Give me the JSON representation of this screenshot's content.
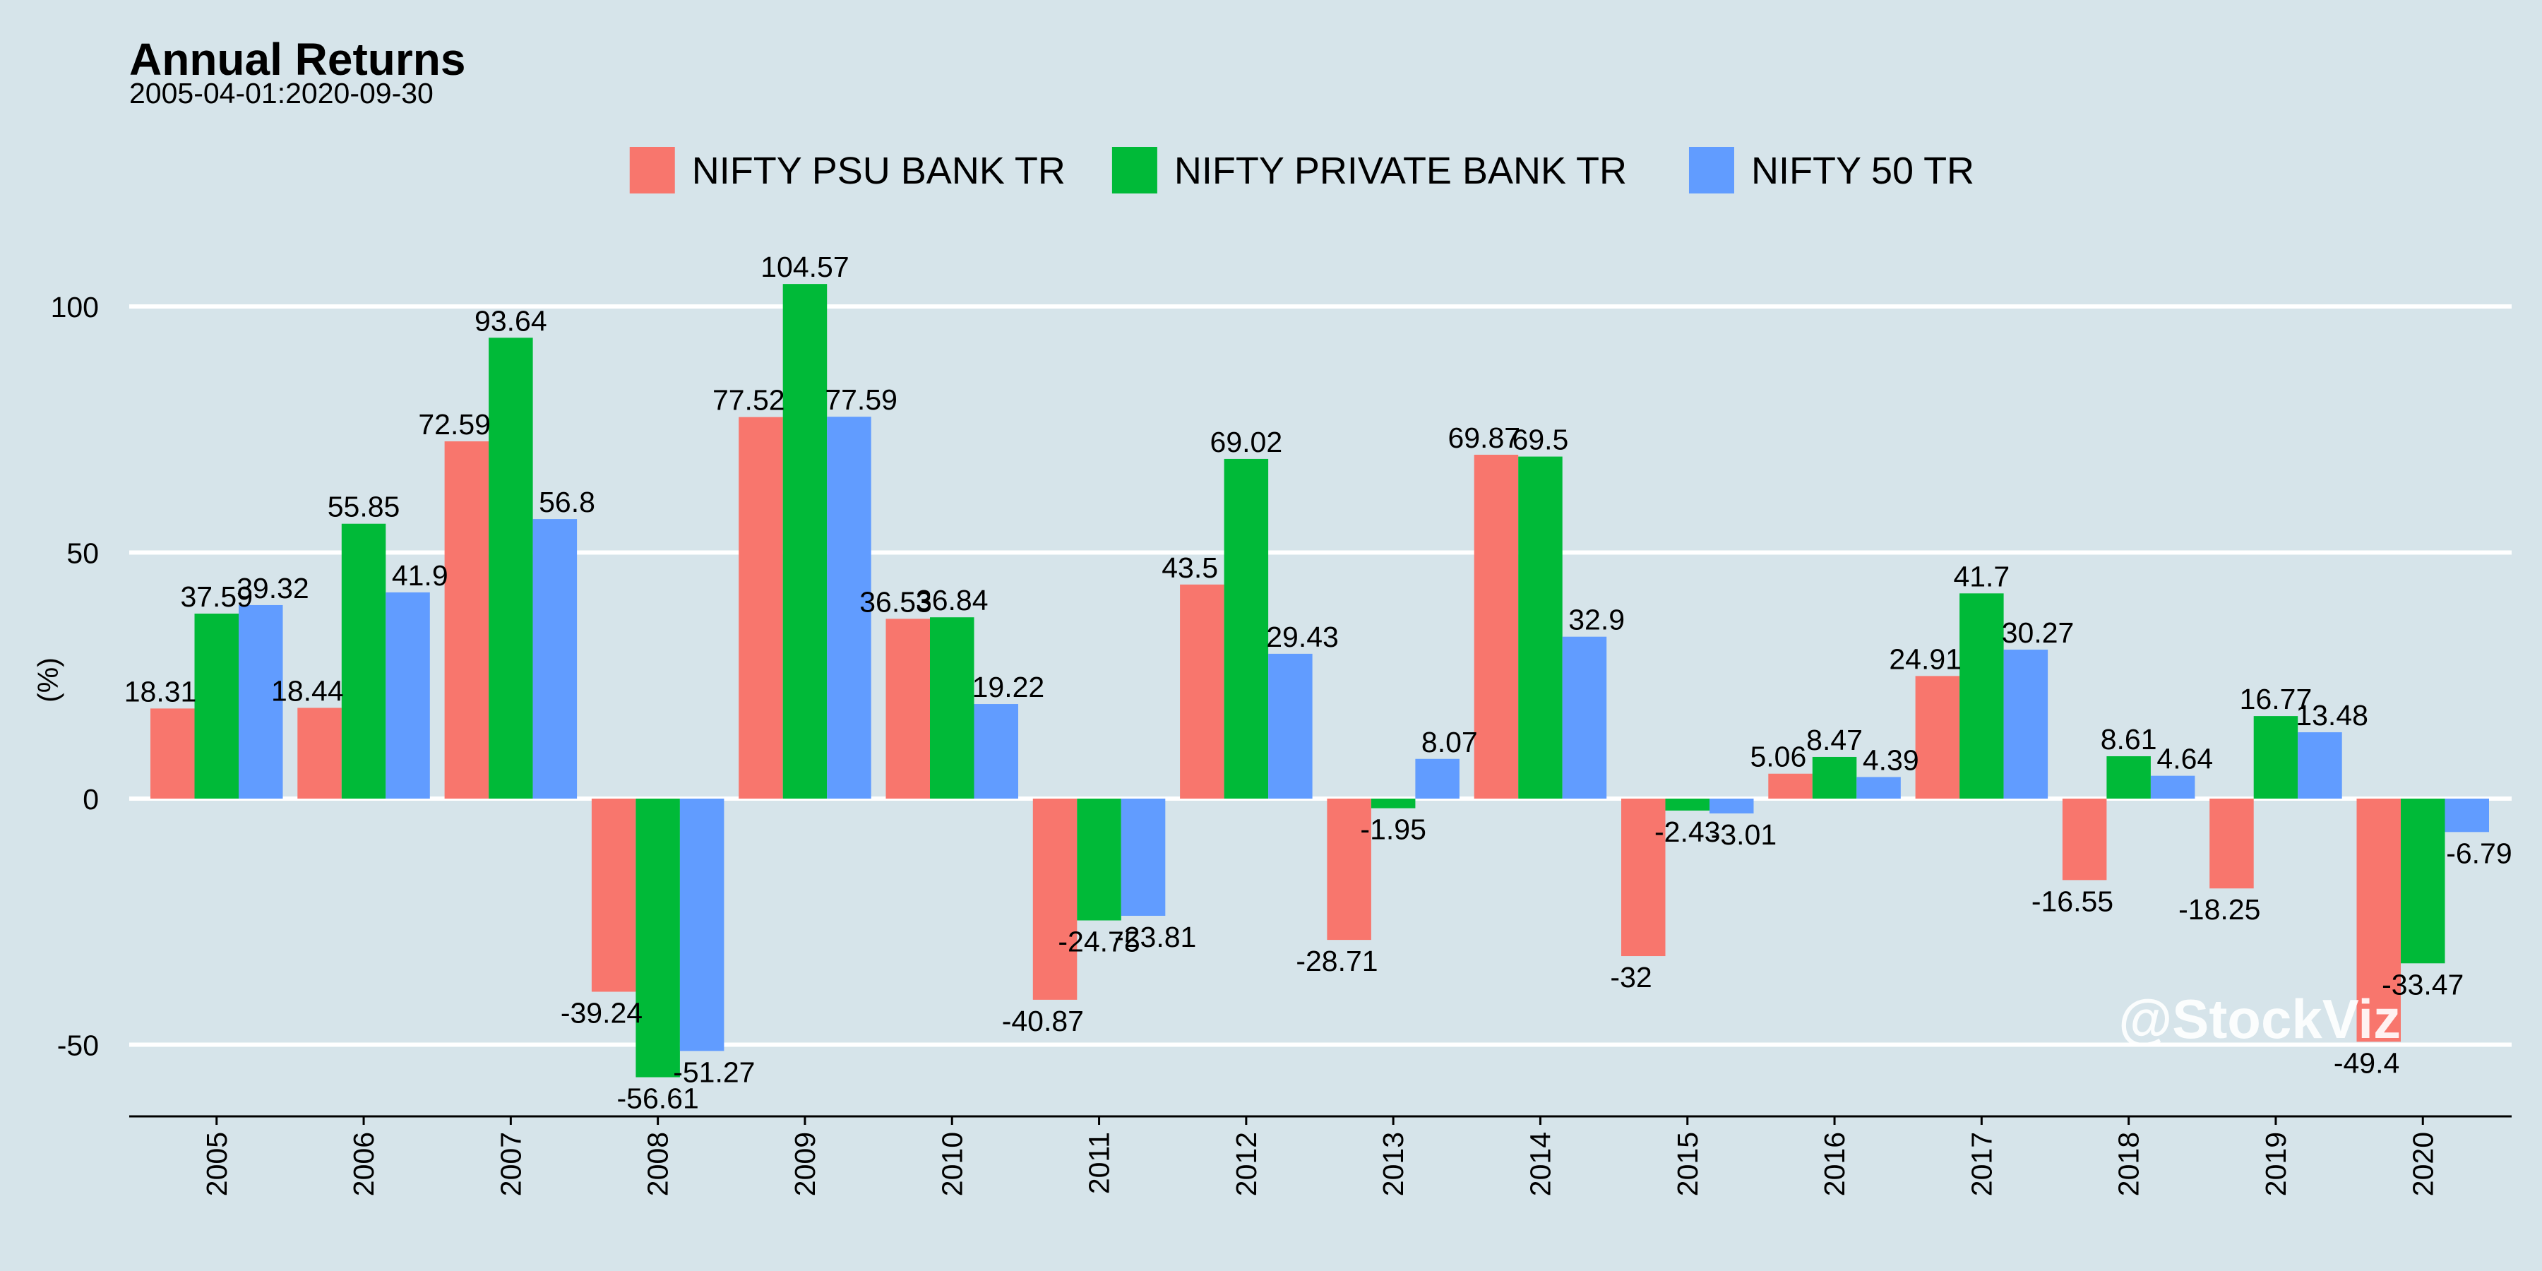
{
  "header": {
    "title": "Annual Returns",
    "subtitle": "2005-04-01:2020-09-30"
  },
  "watermark": "@StockViz",
  "colors": {
    "background": "#d6e4ea",
    "grid": "#ffffff",
    "axis": "#000000",
    "text": "#000000"
  },
  "chart_data": {
    "type": "bar",
    "title": "Annual Returns",
    "subtitle": "2005-04-01:2020-09-30",
    "xlabel": "",
    "ylabel": "(%)",
    "ylim": [
      -64,
      104
    ],
    "yticks": [
      -50,
      0,
      50,
      100
    ],
    "grid": true,
    "legend_position": "top",
    "categories": [
      "2005",
      "2006",
      "2007",
      "2008",
      "2009",
      "2010",
      "2011",
      "2012",
      "2013",
      "2014",
      "2015",
      "2016",
      "2017",
      "2018",
      "2019",
      "2020"
    ],
    "series": [
      {
        "name": "NIFTY PSU BANK TR",
        "color": "#f8766d",
        "values": [
          18.31,
          18.44,
          72.59,
          -39.24,
          77.52,
          36.53,
          -40.87,
          43.5,
          -28.71,
          69.87,
          -32,
          5.06,
          24.91,
          -16.55,
          -18.25,
          -49.4
        ]
      },
      {
        "name": "NIFTY PRIVATE BANK TR",
        "color": "#00ba38",
        "values": [
          37.59,
          55.85,
          93.64,
          -56.61,
          104.57,
          36.84,
          -24.75,
          69.02,
          -1.95,
          69.5,
          -2.43,
          8.47,
          41.7,
          8.61,
          16.77,
          -33.47
        ]
      },
      {
        "name": "NIFTY 50 TR",
        "color": "#619cff",
        "values": [
          39.32,
          41.9,
          56.8,
          -51.27,
          77.59,
          19.22,
          -23.81,
          29.43,
          8.07,
          32.9,
          -3.01,
          4.39,
          30.27,
          4.64,
          13.48,
          -6.79
        ]
      }
    ]
  }
}
